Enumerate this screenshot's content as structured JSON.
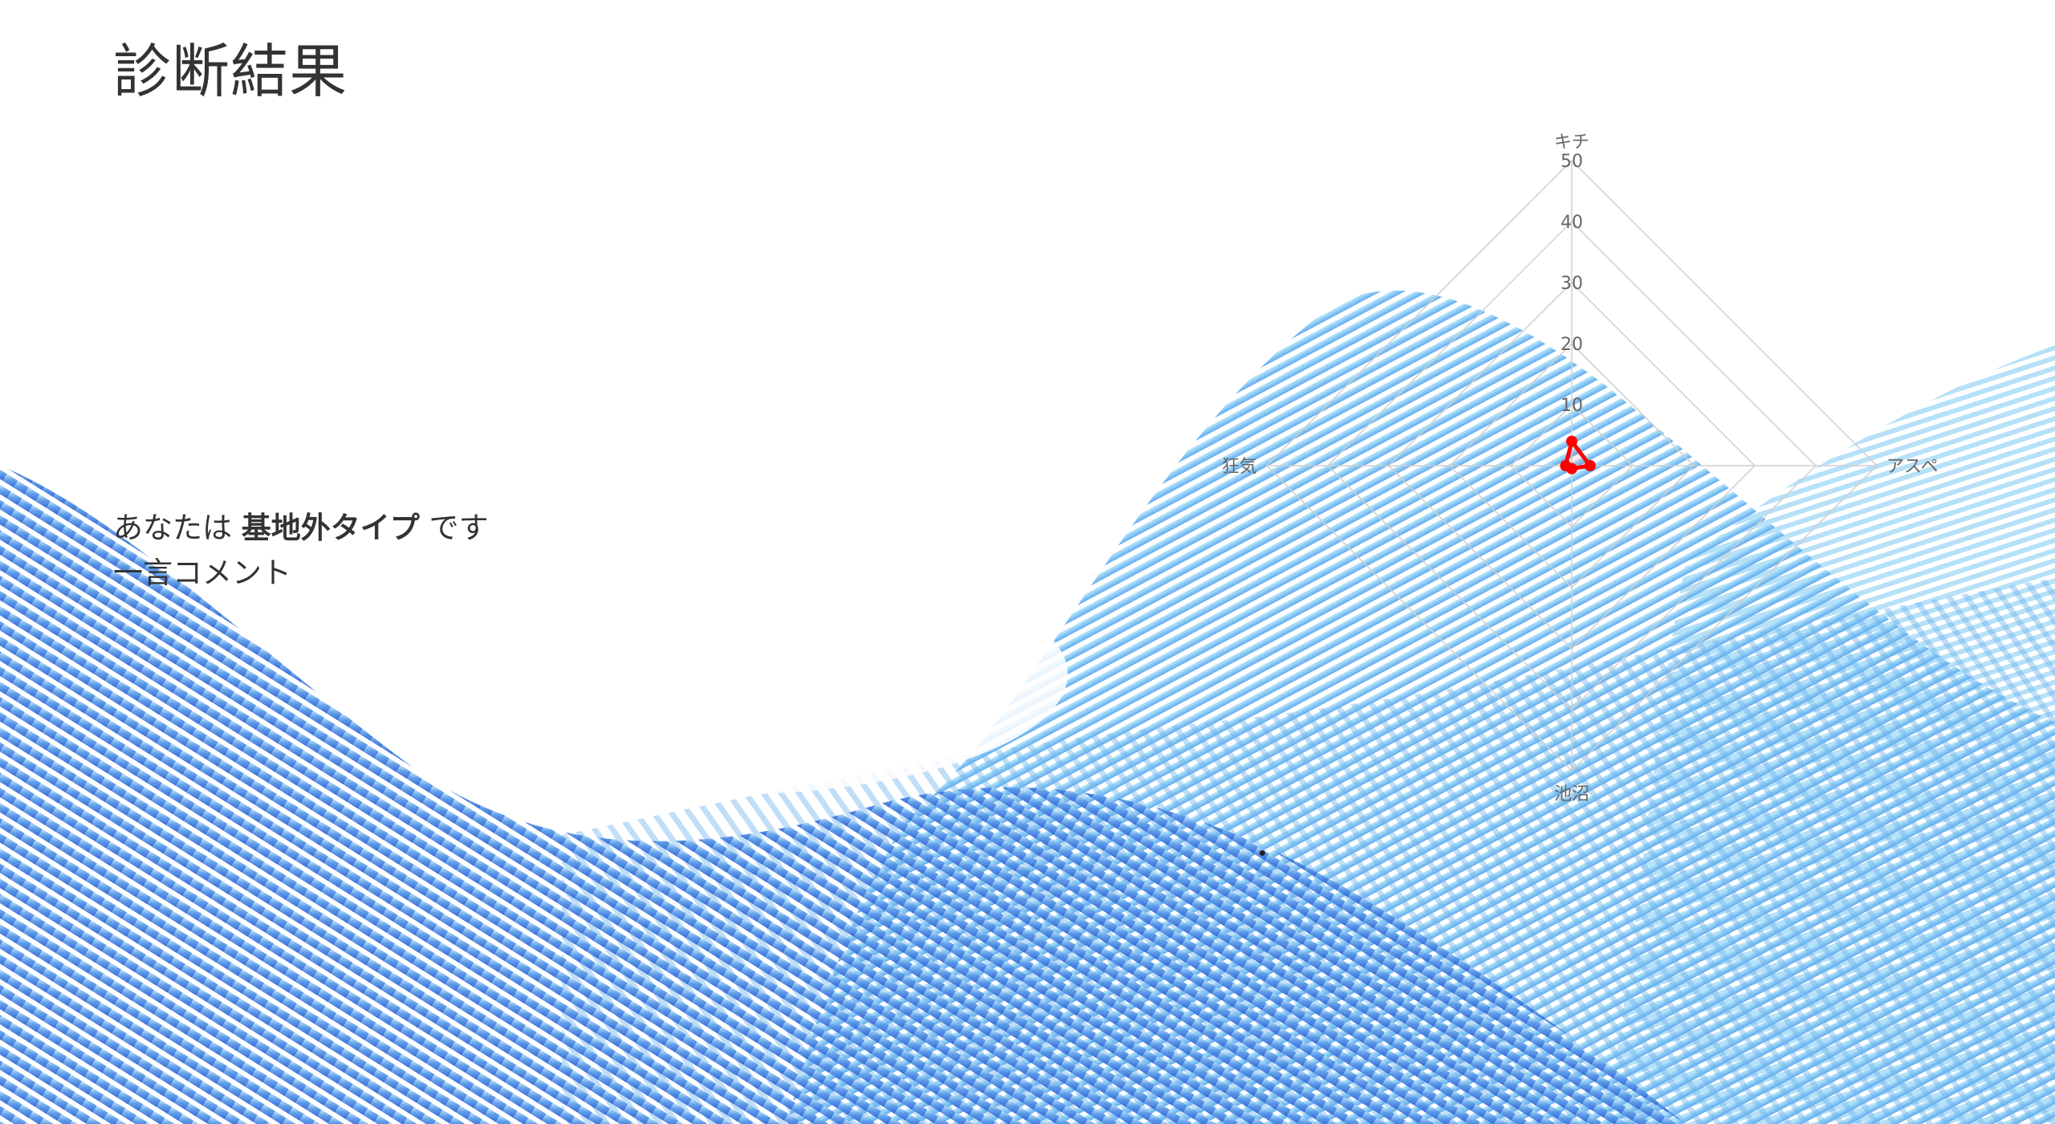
{
  "page": {
    "title": "診断結果"
  },
  "result": {
    "prefix": "あなたは",
    "type_name": "基地外タイプ",
    "suffix": "です",
    "comment": "一言コメント"
  },
  "chart_data": {
    "type": "radar",
    "axes": [
      "キチ",
      "アスペ",
      "池沼",
      "狂気"
    ],
    "ticks": [
      "10",
      "20",
      "30",
      "40",
      "50"
    ],
    "rlim": [
      0,
      50
    ],
    "series": [
      {
        "values": [
          4,
          3,
          0.5,
          1
        ],
        "color": "#ff0000"
      }
    ],
    "grid": true
  },
  "colors": {
    "accent": "#ff0000",
    "wave_light": "#8fd3f5",
    "wave_dark": "#3d7be0"
  }
}
